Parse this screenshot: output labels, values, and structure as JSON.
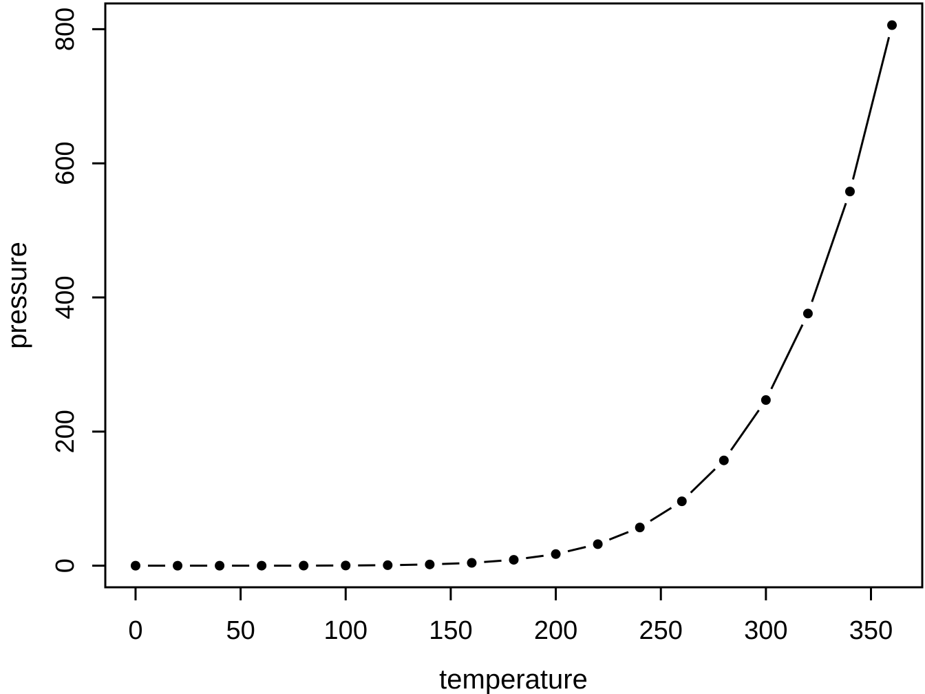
{
  "figure": {
    "background": "#ffffff",
    "foreground": "#000000"
  },
  "chart_data": {
    "type": "scatter",
    "subtype": "points-with-connecting-segments",
    "title": "",
    "xlabel": "temperature",
    "ylabel": "pressure",
    "x": [
      0,
      20,
      40,
      60,
      80,
      100,
      120,
      140,
      160,
      180,
      200,
      220,
      240,
      260,
      280,
      300,
      320,
      340,
      360
    ],
    "y": [
      0.0002,
      0.0012,
      0.006,
      0.03,
      0.09,
      0.27,
      0.75,
      1.85,
      4.2,
      8.8,
      17.3,
      32.1,
      57,
      96,
      157,
      247,
      376,
      558,
      806
    ],
    "x_ticks": [
      0,
      50,
      100,
      150,
      200,
      250,
      300,
      350
    ],
    "y_ticks": [
      0,
      200,
      400,
      600,
      800
    ],
    "xlim": [
      -14.4,
      374.4
    ],
    "ylim": [
      -32.2,
      838.4
    ],
    "grid": false,
    "legend": null,
    "point_color": "#000000",
    "line_color": "#000000",
    "axis_color": "#000000"
  }
}
